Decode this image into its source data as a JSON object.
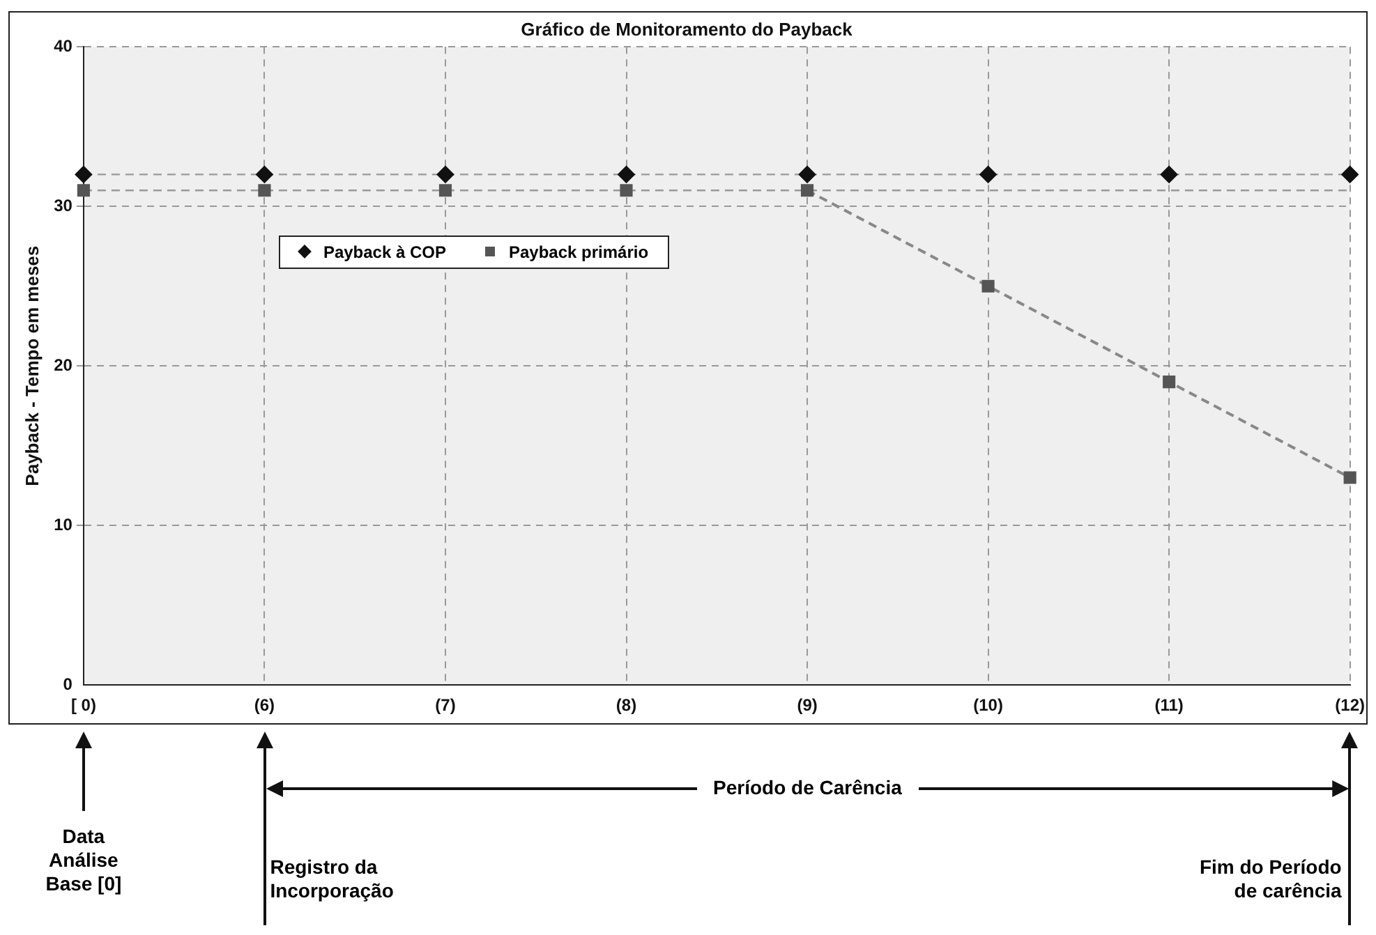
{
  "chart_data": {
    "type": "scatter",
    "title": "Gráfico de Monitoramento do Payback",
    "ylabel": "Payback - Tempo em meses",
    "categories": [
      "[ 0)",
      "(6)",
      "(7)",
      "(8)",
      "(9)",
      "(10)",
      "(11)",
      "(12)"
    ],
    "series": [
      {
        "name": "Payback à COP",
        "color": "#111111",
        "marker": "diamond",
        "values": [
          32,
          32,
          32,
          32,
          32,
          32,
          32,
          32
        ]
      },
      {
        "name": "Payback primário",
        "color": "#555555",
        "marker": "square",
        "values": [
          31,
          31,
          31,
          31,
          31,
          25,
          19,
          13
        ]
      },
      {
        "type": "line",
        "color": "#888888",
        "marker": "none",
        "line_style": "dashed",
        "x": [
          "(9)",
          "(10)",
          "(11)",
          "(12)"
        ],
        "values": [
          31,
          25,
          19,
          13
        ]
      }
    ],
    "ylim": [
      0,
      40
    ],
    "yticks": [
      0,
      10,
      20,
      30,
      40
    ],
    "grid": true,
    "legend": "top left",
    "ref_lines": [
      {
        "axis": "y",
        "value": 32,
        "color": "#999999",
        "line_style": "dashed"
      },
      {
        "axis": "y",
        "value": 31,
        "color": "#999999",
        "line_style": "dashed"
      }
    ],
    "annotations": [
      "Data Análise Base [0]",
      "Registro da Incorporação",
      "Fim do Período de carência",
      "Período de Carência"
    ]
  }
}
